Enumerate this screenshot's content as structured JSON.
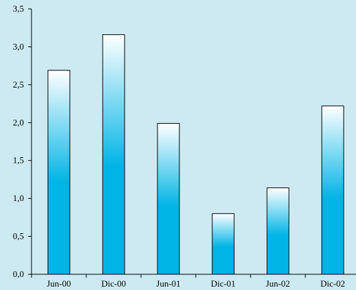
{
  "chart_data": {
    "type": "bar",
    "title": "",
    "xlabel": "",
    "ylabel": "",
    "categories": [
      "Jun-00",
      "Dic-00",
      "Jun-01",
      "Dic-01",
      "Jun-02",
      "Dic-02"
    ],
    "values": [
      2.69,
      3.16,
      1.99,
      0.8,
      1.14,
      2.22
    ],
    "ylim": [
      0,
      3.5
    ],
    "yticks": [
      0,
      0.5,
      1.0,
      1.5,
      2.0,
      2.5,
      3.0,
      3.5
    ],
    "ytick_labels": [
      "0,0",
      "0,5",
      "1,0",
      "1,5",
      "2,0",
      "2,5",
      "3,0",
      "3,5"
    ],
    "grid": false,
    "legend": "none",
    "colors": {
      "background": "#cdeaf3",
      "bar_bottom": "#00b4e6",
      "bar_top": "#ffffff",
      "bar_outline": "#000000"
    }
  }
}
